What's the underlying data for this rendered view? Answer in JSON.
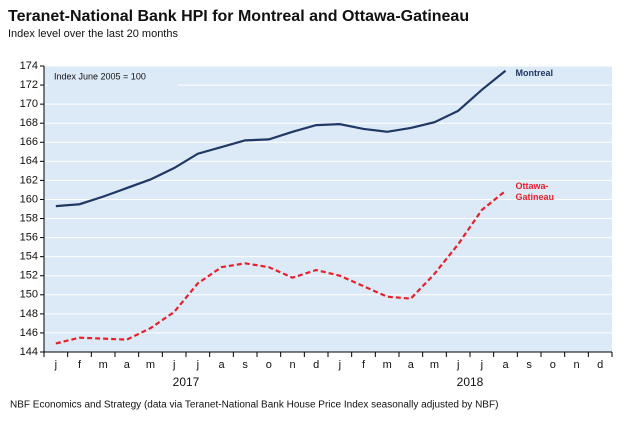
{
  "chart_data": {
    "type": "line",
    "title": "Teranet-National Bank HPI for Montreal and Ottawa-Gatineau",
    "subtitle": "Index level over the last 20 months",
    "annotation": "Index June 2005 = 100",
    "source": "NBF Economics and Strategy (data via Teranet-National Bank House Price Index seasonally adjusted by NBF)",
    "categories": [
      "j",
      "f",
      "m",
      "a",
      "m",
      "j",
      "j",
      "a",
      "s",
      "o",
      "n",
      "d",
      "j",
      "f",
      "m",
      "a",
      "m",
      "j",
      "j",
      "a",
      "s",
      "o",
      "n",
      "d"
    ],
    "year_labels": [
      "2017",
      "2018"
    ],
    "series": [
      {
        "name": "Montreal",
        "color": "#1f3864",
        "dashed": false,
        "values": [
          159.3,
          159.5,
          160.3,
          161.2,
          162.1,
          163.3,
          164.8,
          165.5,
          166.2,
          166.3,
          167.1,
          167.8,
          167.9,
          167.4,
          167.1,
          167.5,
          168.1,
          169.3,
          171.5,
          173.5,
          null,
          null,
          null,
          null
        ]
      },
      {
        "name": "Ottawa-Gatineau",
        "color": "#e8202a",
        "dashed": true,
        "values": [
          144.9,
          145.5,
          145.4,
          145.3,
          146.5,
          148.2,
          151.2,
          152.9,
          153.3,
          152.9,
          151.8,
          152.6,
          152.0,
          150.9,
          149.8,
          149.6,
          152.2,
          155.3,
          158.9,
          160.9,
          null,
          null,
          null,
          null
        ]
      }
    ],
    "ylim": [
      144,
      174
    ],
    "yticks": [
      144,
      146,
      148,
      150,
      152,
      154,
      156,
      158,
      160,
      162,
      164,
      166,
      168,
      170,
      172,
      174
    ],
    "grid": true
  }
}
